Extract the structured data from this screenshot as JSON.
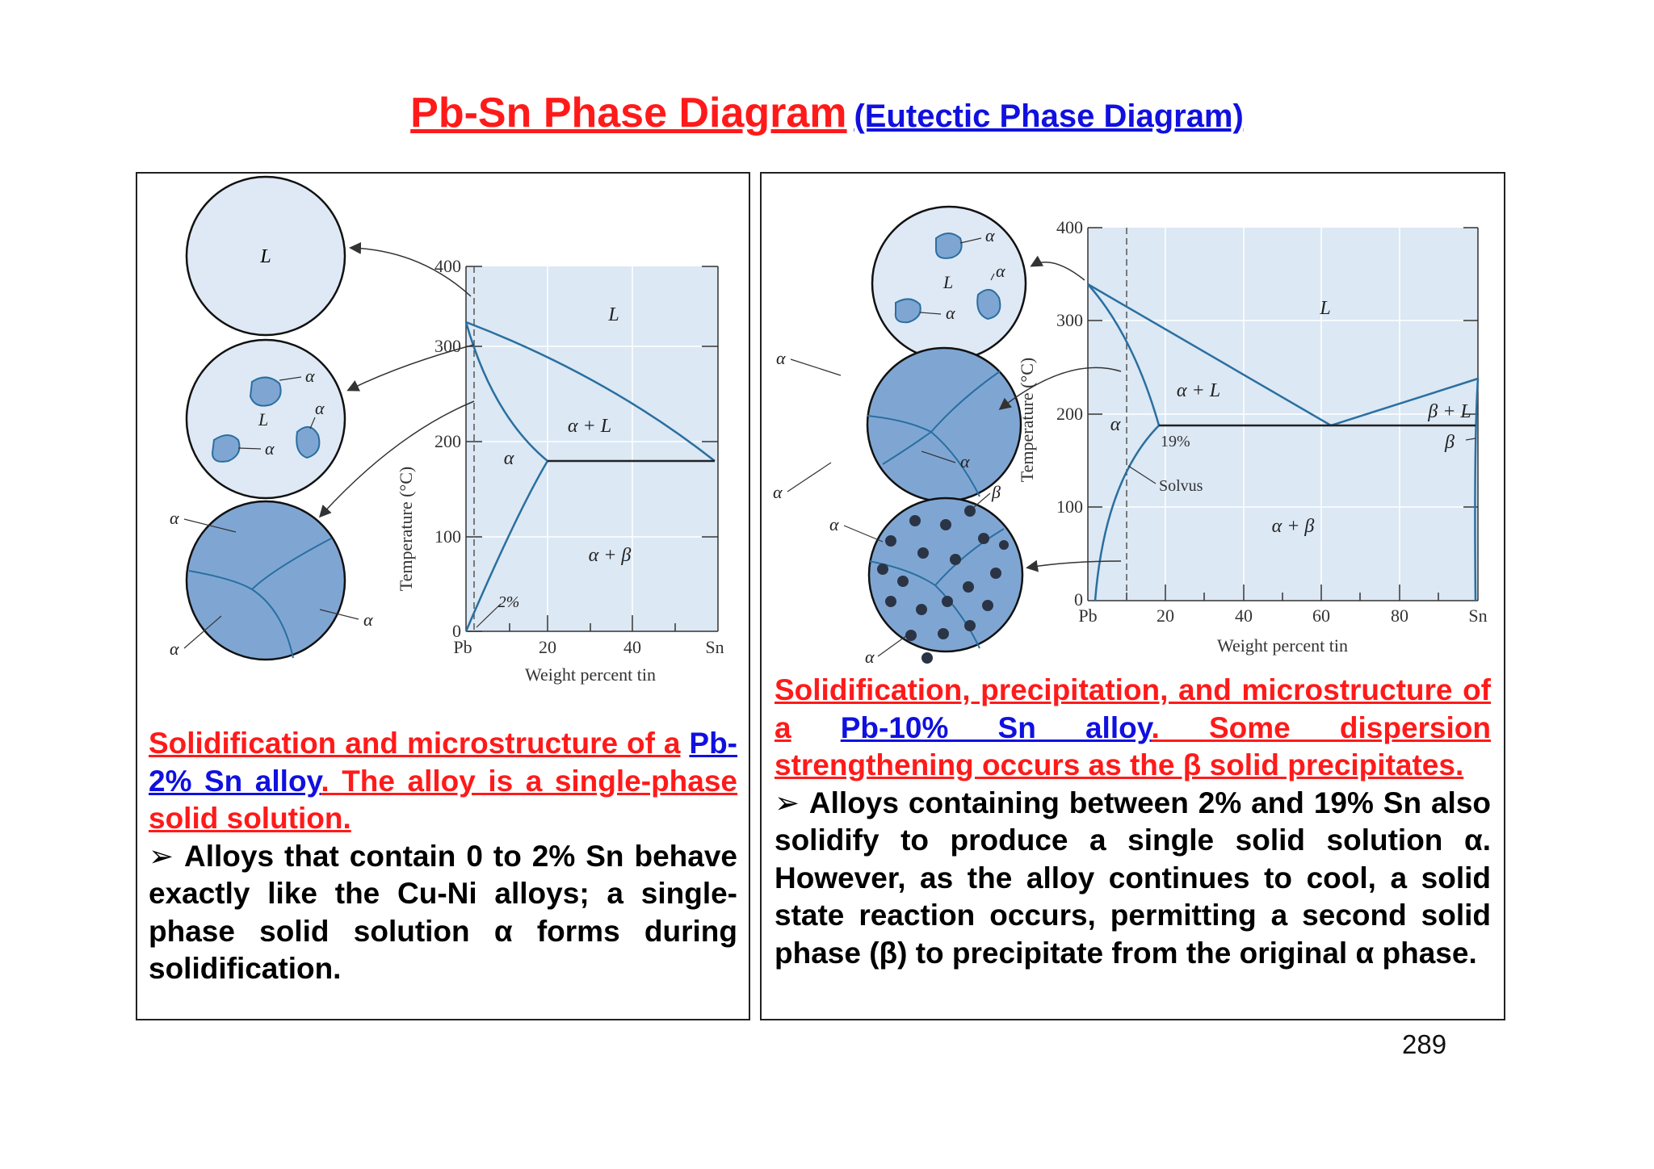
{
  "title": {
    "main": "Pb-Sn Phase Diagram",
    "sub": "(Eutectic Phase Diagram)"
  },
  "left_panel": {
    "caption_red_1": "Solidification and microstructure of a",
    "caption_blue": "Pb-2% Sn alloy",
    "caption_red_2": ". The alloy is a single-phase solid solution.",
    "bullet_glyph": "➢",
    "bullet_text": "Alloys that contain 0 to 2% Sn behave exactly like the Cu-Ni alloys; a single-phase solid solution α forms during solidification.",
    "diagram": {
      "y_axis_label": "Temperature (°C)",
      "x_axis_label": "Weight percent tin",
      "y_ticks": [
        "400",
        "300",
        "200",
        "100",
        "0"
      ],
      "x_ticks": [
        "Pb",
        "20",
        "40",
        "Sn"
      ],
      "region_L": "L",
      "region_alpha": "α",
      "region_alpha_L": "α + L",
      "region_alpha_beta": "α + β",
      "composition_label": "2%",
      "circle_label_L": "L",
      "circle_label_alpha": "α"
    }
  },
  "right_panel": {
    "caption_red_1": "Solidification, precipitation, and microstructure of a",
    "caption_blue": "Pb-10% Sn alloy",
    "caption_red_2": ". Some dispersion strengthening occurs as the β solid precipitates.",
    "bullet_glyph": "➢",
    "bullet_text": "Alloys containing between 2% and 19% Sn also solidify to produce a single solid solution α. However, as the alloy continues to cool, a solid state reaction occurs, permitting a second solid phase (β) to precipitate from the original α phase.",
    "diagram": {
      "y_axis_label": "Temperature (°C)",
      "x_axis_label": "Weight percent tin",
      "y_ticks": [
        "400",
        "300",
        "200",
        "100",
        "0"
      ],
      "x_ticks": [
        "Pb",
        "20",
        "40",
        "60",
        "80",
        "Sn"
      ],
      "region_L": "L",
      "region_alpha": "α",
      "region_alpha_L": "α + L",
      "region_alpha_beta": "α + β",
      "region_beta_L": "β + L",
      "region_beta": "β",
      "label_19": "19%",
      "label_solvus": "Solvus",
      "circle_label_L": "L",
      "circle_label_alpha": "α",
      "circle_label_beta": "β"
    }
  },
  "page_number": "289",
  "colors": {
    "title_red": "#ff1a1a",
    "title_blue": "#1010e0",
    "diagram_bg": "#dce8f4",
    "curve": "#2a6fa0",
    "solid_fill": "#7fa6d3",
    "liquid_fill": "#dfe9f5"
  }
}
